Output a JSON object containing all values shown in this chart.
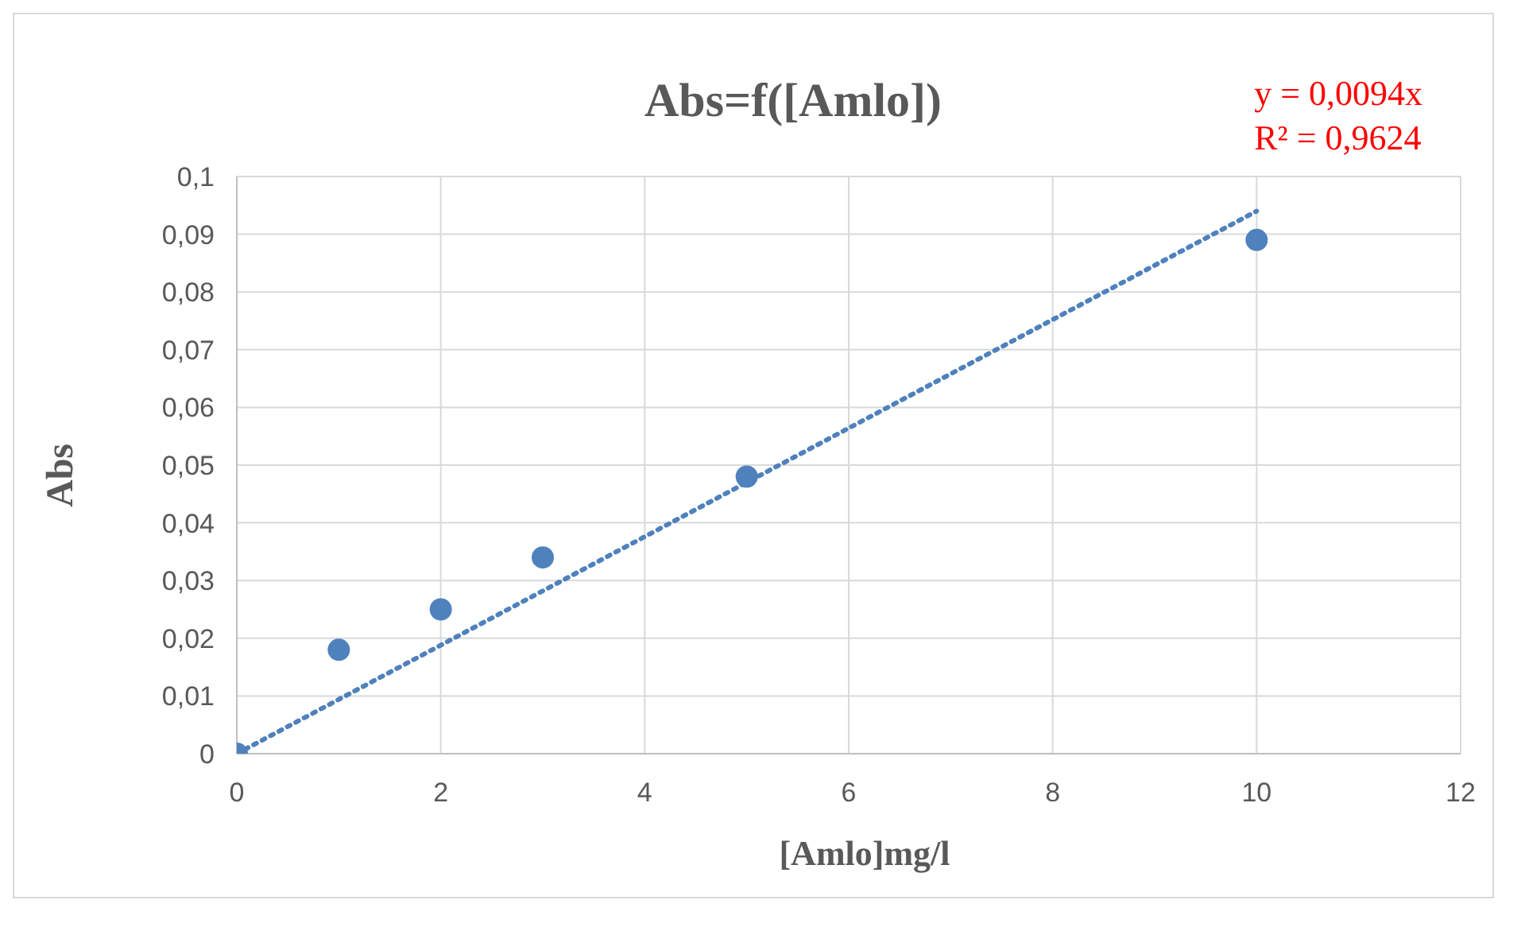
{
  "chart_data": {
    "type": "scatter",
    "title": "Abs=f([Amlo])",
    "xlabel": "[Amlo]mg/l",
    "ylabel": "Abs",
    "annotations": [
      "y = 0,0094x",
      "R² = 0,9624"
    ],
    "x": [
      0,
      1,
      2,
      3,
      5,
      10
    ],
    "series": [
      {
        "color": "#4f81bd",
        "values": [
          0,
          0.018,
          0.025,
          0.034,
          0.048,
          0.089
        ],
        "marker": "circle"
      },
      {
        "type": "line",
        "color": "#4f81bd",
        "x": [
          0,
          10
        ],
        "values": [
          0,
          0.094
        ],
        "marker": "none",
        "line_style": "dotted"
      }
    ],
    "xlim": [
      0,
      12
    ],
    "xticks": [
      0,
      2,
      4,
      6,
      8,
      10,
      12
    ],
    "ylim": [
      0,
      0.1
    ],
    "yticks": [
      {
        "value": 0,
        "label": "0"
      },
      {
        "value": 0.01,
        "label": "0,01"
      },
      {
        "value": 0.02,
        "label": "0,02"
      },
      {
        "value": 0.03,
        "label": "0,03"
      },
      {
        "value": 0.04,
        "label": "0,04"
      },
      {
        "value": 0.05,
        "label": "0,05"
      },
      {
        "value": 0.06,
        "label": "0,06"
      },
      {
        "value": 0.07,
        "label": "0,07"
      },
      {
        "value": 0.08,
        "label": "0,08"
      },
      {
        "value": 0.09,
        "label": "0,09"
      },
      {
        "value": 0.1,
        "label": "0,1"
      }
    ],
    "grid": true,
    "legend": false
  }
}
